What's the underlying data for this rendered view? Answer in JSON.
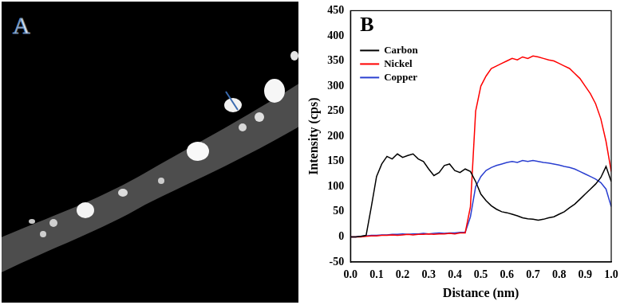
{
  "image_panel": {
    "panel_label": "A"
  },
  "chart_data": {
    "type": "line",
    "panel_label": "B",
    "x_label": "Distance (nm)",
    "y_label": "Intensity (cps)",
    "x": [
      0,
      0.02,
      0.04,
      0.06,
      0.08,
      0.1,
      0.12,
      0.14,
      0.16,
      0.18,
      0.2,
      0.22,
      0.24,
      0.26,
      0.28,
      0.3,
      0.32,
      0.34,
      0.36,
      0.38,
      0.4,
      0.42,
      0.44,
      0.46,
      0.48,
      0.5,
      0.52,
      0.54,
      0.56,
      0.58,
      0.6,
      0.62,
      0.64,
      0.66,
      0.68,
      0.7,
      0.72,
      0.74,
      0.76,
      0.78,
      0.8,
      0.82,
      0.84,
      0.86,
      0.88,
      0.9,
      0.92,
      0.94,
      0.96,
      0.98,
      1.0
    ],
    "series": [
      {
        "name": "Carbon",
        "color": "#000000",
        "values": [
          0,
          0,
          1,
          3,
          60,
          120,
          145,
          160,
          155,
          165,
          158,
          162,
          165,
          155,
          150,
          135,
          122,
          128,
          142,
          145,
          132,
          128,
          135,
          130,
          110,
          85,
          72,
          62,
          55,
          50,
          48,
          45,
          42,
          38,
          36,
          35,
          33,
          35,
          38,
          40,
          45,
          50,
          58,
          65,
          75,
          85,
          95,
          105,
          118,
          140,
          110
        ]
      },
      {
        "name": "Nickel",
        "color": "#ff0000",
        "values": [
          0,
          0,
          0,
          1,
          2,
          2,
          3,
          3,
          4,
          3,
          4,
          5,
          4,
          5,
          5,
          6,
          5,
          6,
          6,
          7,
          6,
          8,
          8,
          60,
          250,
          300,
          320,
          335,
          340,
          345,
          350,
          355,
          352,
          358,
          355,
          360,
          358,
          355,
          352,
          350,
          345,
          340,
          335,
          325,
          315,
          300,
          285,
          265,
          235,
          190,
          130
        ]
      },
      {
        "name": "Copper",
        "color": "#2a3fd0",
        "values": [
          0,
          0,
          1,
          2,
          3,
          3,
          4,
          4,
          5,
          5,
          6,
          5,
          6,
          6,
          7,
          6,
          7,
          8,
          7,
          8,
          8,
          9,
          9,
          40,
          100,
          120,
          132,
          138,
          142,
          145,
          148,
          150,
          148,
          152,
          150,
          152,
          150,
          148,
          147,
          145,
          143,
          140,
          138,
          135,
          130,
          125,
          120,
          115,
          108,
          95,
          60
        ]
      }
    ],
    "xlim": [
      0,
      1.0
    ],
    "xticks": [
      {
        "value": 0,
        "label": "0.0"
      },
      0.1,
      0.2,
      0.3,
      0.4,
      0.5,
      0.6,
      0.7,
      0.8,
      0.9,
      {
        "value": 1.0,
        "label": "1.0"
      }
    ],
    "ylim": [
      -50,
      450
    ],
    "yticks": [
      -50,
      0,
      50,
      100,
      150,
      200,
      250,
      300,
      350,
      400,
      450
    ],
    "grid": false,
    "legend": "upper left"
  }
}
